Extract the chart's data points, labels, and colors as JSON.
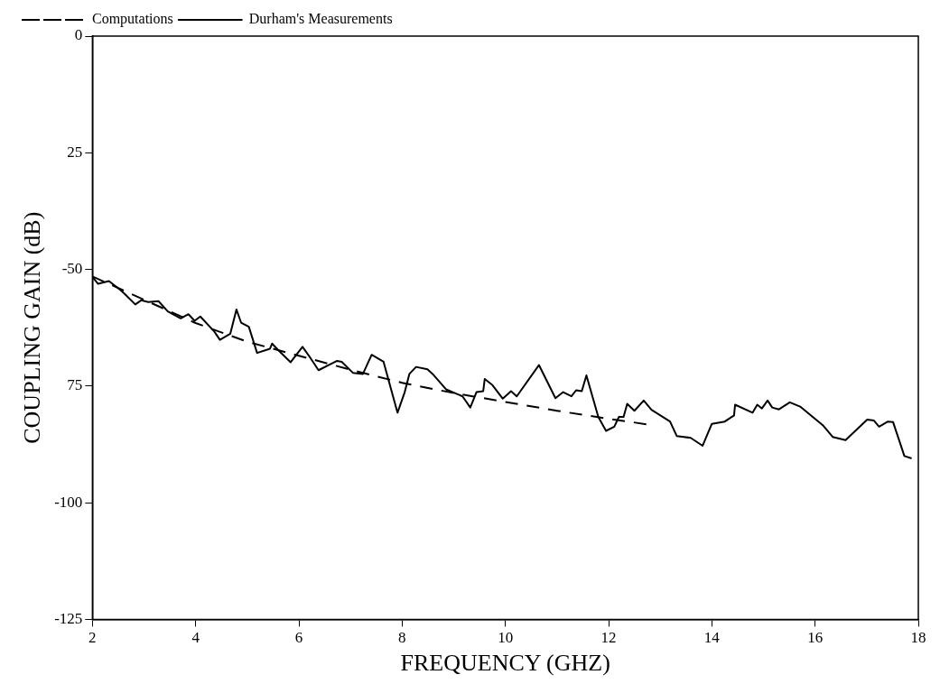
{
  "chart_data": {
    "type": "line",
    "xlabel": "FREQUENCY (GHZ)",
    "ylabel": "COUPLING GAIN (dB)",
    "xlim": [
      2,
      18
    ],
    "ylim": [
      -125,
      0
    ],
    "xticks": [
      2,
      4,
      6,
      8,
      10,
      12,
      14,
      16,
      18
    ],
    "yticks": [
      {
        "value": -125,
        "label": "-125"
      },
      {
        "value": -100,
        "label": "-100"
      },
      {
        "value": -75,
        "label": "75"
      },
      {
        "value": -50,
        "label": "-50"
      },
      {
        "value": -25,
        "label": "25"
      },
      {
        "value": 0,
        "label": "0"
      }
    ],
    "grid": false,
    "legend": "top left",
    "marker": "none",
    "series": [
      {
        "name": "Computations",
        "color": "#000000",
        "line_style": "dashed",
        "x": [
          2,
          3,
          4,
          5,
          6,
          7,
          8,
          9,
          10,
          11,
          12,
          12.8
        ],
        "values": [
          -51.5,
          -56.5,
          -61.5,
          -65.5,
          -68.5,
          -71.5,
          -74.3,
          -76.5,
          -78.4,
          -80.3,
          -82.0,
          -83.3
        ]
      },
      {
        "name": "Durham's Measurements",
        "color": "#000000",
        "line_style": "solid",
        "x": [
          2.0,
          2.11,
          2.32,
          2.54,
          2.63,
          2.83,
          2.95,
          3.08,
          3.28,
          3.46,
          3.71,
          3.86,
          3.98,
          4.09,
          4.36,
          4.47,
          4.67,
          4.79,
          4.88,
          5.03,
          5.19,
          5.44,
          5.48,
          5.6,
          5.84,
          6.07,
          6.2,
          6.38,
          6.74,
          6.83,
          7.05,
          7.24,
          7.41,
          7.64,
          7.91,
          8.05,
          8.14,
          8.27,
          8.49,
          8.59,
          8.85,
          9.17,
          9.32,
          9.44,
          9.57,
          9.6,
          9.75,
          9.95,
          10.11,
          10.22,
          10.65,
          10.97,
          11.12,
          11.28,
          11.37,
          11.48,
          11.57,
          11.8,
          11.95,
          12.11,
          12.2,
          12.29,
          12.36,
          12.5,
          12.68,
          12.83,
          13.19,
          13.32,
          13.59,
          13.82,
          14.0,
          14.25,
          14.43,
          14.45,
          14.79,
          14.88,
          14.97,
          15.08,
          15.17,
          15.3,
          15.51,
          15.71,
          16.16,
          16.34,
          16.59,
          17.01,
          17.14,
          17.24,
          17.41,
          17.51,
          17.73,
          17.87
        ],
        "values": [
          -51.6,
          -53.1,
          -52.5,
          -54.4,
          -55.3,
          -57.5,
          -56.6,
          -57.0,
          -56.8,
          -59.0,
          -60.5,
          -59.6,
          -61.0,
          -60.1,
          -63.3,
          -65.1,
          -63.8,
          -58.6,
          -61.4,
          -62.3,
          -67.9,
          -67.0,
          -65.9,
          -67.3,
          -69.9,
          -66.6,
          -68.6,
          -71.6,
          -69.6,
          -69.8,
          -72.2,
          -72.4,
          -68.3,
          -69.8,
          -80.7,
          -76.3,
          -72.4,
          -70.9,
          -71.4,
          -72.4,
          -75.7,
          -77.2,
          -79.6,
          -76.3,
          -76.1,
          -73.5,
          -74.8,
          -77.7,
          -76.1,
          -77.2,
          -70.5,
          -77.6,
          -76.3,
          -77.2,
          -75.9,
          -76.1,
          -72.7,
          -81.6,
          -84.6,
          -83.7,
          -81.6,
          -81.6,
          -78.8,
          -80.3,
          -78.1,
          -80.1,
          -82.6,
          -85.7,
          -86.1,
          -87.8,
          -83.1,
          -82.6,
          -81.3,
          -79.0,
          -80.7,
          -79.0,
          -79.8,
          -78.1,
          -79.6,
          -80.0,
          -78.5,
          -79.4,
          -83.5,
          -85.9,
          -86.6,
          -82.2,
          -82.4,
          -83.7,
          -82.6,
          -82.7,
          -90.0,
          -90.5
        ]
      }
    ]
  }
}
